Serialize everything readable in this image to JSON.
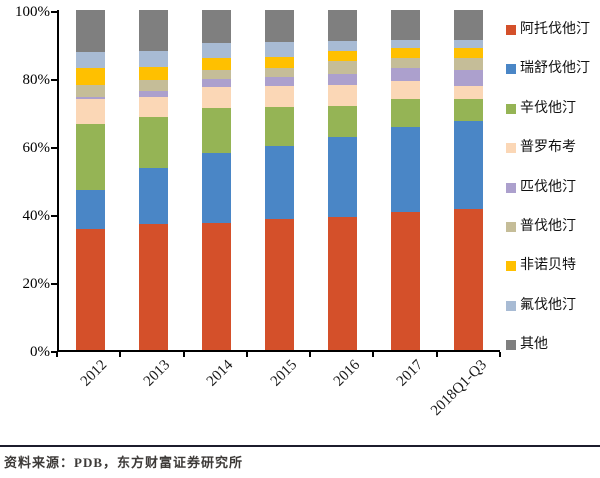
{
  "chart_data": {
    "type": "bar",
    "variant": "stacked-100-percent",
    "title": "",
    "xlabel": "",
    "ylabel": "",
    "ylim": [
      0,
      100
    ],
    "grid": false,
    "legend_position": "right",
    "y_ticks": [
      "0%",
      "20%",
      "40%",
      "60%",
      "80%",
      "100%"
    ],
    "categories": [
      "2012",
      "2013",
      "2014",
      "2015",
      "2016",
      "2017",
      "2018Q1-Q3"
    ],
    "series": [
      {
        "name": "阿托伐他汀",
        "color": "#D4502A",
        "values": [
          35.5,
          37.0,
          37.5,
          38.5,
          39.0,
          40.5,
          41.5
        ]
      },
      {
        "name": "瑞舒伐他汀",
        "color": "#4A86C6",
        "values": [
          11.7,
          16.5,
          20.5,
          21.5,
          23.7,
          25.0,
          25.8
        ]
      },
      {
        "name": "辛伐他汀",
        "color": "#95B455",
        "values": [
          19.3,
          15.0,
          13.3,
          11.6,
          9.1,
          8.3,
          6.4
        ]
      },
      {
        "name": "普罗布考",
        "color": "#FBD7B6",
        "values": [
          7.2,
          6.0,
          6.0,
          6.2,
          6.2,
          5.2,
          4.1
        ]
      },
      {
        "name": "匹伐他汀",
        "color": "#ACA0CD",
        "values": [
          0.8,
          1.8,
          2.3,
          2.5,
          3.2,
          3.9,
          4.7
        ]
      },
      {
        "name": "普伐他汀",
        "color": "#C5BD98",
        "values": [
          3.5,
          3.1,
          2.8,
          2.7,
          3.9,
          2.9,
          3.4
        ]
      },
      {
        "name": "非诺贝特",
        "color": "#FFC000",
        "values": [
          5.0,
          3.9,
          3.5,
          3.3,
          3.0,
          3.0,
          3.0
        ]
      },
      {
        "name": "氟伐他汀",
        "color": "#A8BBD4",
        "values": [
          4.7,
          4.7,
          4.3,
          4.2,
          2.9,
          2.4,
          2.4
        ]
      },
      {
        "name": "其他",
        "color": "#7F7F7F",
        "values": [
          12.3,
          12.0,
          9.8,
          9.5,
          9.0,
          8.8,
          8.7
        ]
      }
    ]
  },
  "footer": {
    "source_text": "资料来源：PDB，东方财富证券研究所"
  }
}
